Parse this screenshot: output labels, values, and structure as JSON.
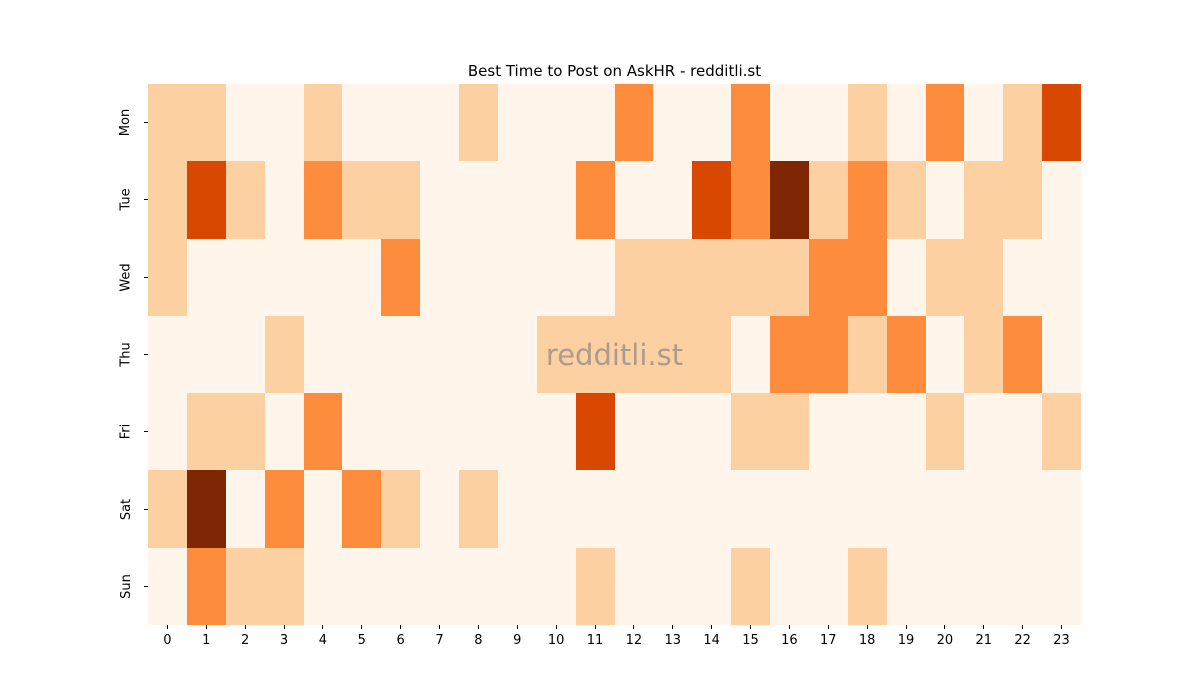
{
  "chart_data": {
    "type": "heatmap",
    "title": "Best Time to Post on AskHR - redditli.st",
    "watermark": "redditli.st",
    "xlabel": "",
    "ylabel": "",
    "x_labels": [
      "0",
      "1",
      "2",
      "3",
      "4",
      "5",
      "6",
      "7",
      "8",
      "9",
      "10",
      "11",
      "12",
      "13",
      "14",
      "15",
      "16",
      "17",
      "18",
      "19",
      "20",
      "21",
      "22",
      "23"
    ],
    "y_labels": [
      "Mon",
      "Tue",
      "Wed",
      "Thu",
      "Fri",
      "Sat",
      "Sun"
    ],
    "values": [
      [
        1,
        1,
        0,
        0,
        1,
        0,
        0,
        0,
        1,
        0,
        0,
        0,
        2,
        0,
        0,
        2,
        0,
        0,
        1,
        0,
        2,
        0,
        1,
        3
      ],
      [
        1,
        3,
        1,
        0,
        2,
        1,
        1,
        0,
        0,
        0,
        0,
        2,
        0,
        0,
        3,
        2,
        4,
        1,
        2,
        1,
        0,
        1,
        1,
        0
      ],
      [
        1,
        0,
        0,
        0,
        0,
        0,
        2,
        0,
        0,
        0,
        0,
        0,
        1,
        1,
        1,
        1,
        1,
        2,
        2,
        0,
        1,
        1,
        0,
        0
      ],
      [
        0,
        0,
        0,
        1,
        0,
        0,
        0,
        0,
        0,
        0,
        1,
        1,
        1,
        1,
        1,
        0,
        2,
        2,
        1,
        2,
        0,
        1,
        2,
        0
      ],
      [
        0,
        1,
        1,
        0,
        2,
        0,
        0,
        0,
        0,
        0,
        0,
        3,
        0,
        0,
        0,
        1,
        1,
        0,
        0,
        0,
        1,
        0,
        0,
        1
      ],
      [
        1,
        4,
        0,
        2,
        0,
        2,
        1,
        0,
        1,
        0,
        0,
        0,
        0,
        0,
        0,
        0,
        0,
        0,
        0,
        0,
        0,
        0,
        0,
        0
      ],
      [
        0,
        2,
        1,
        1,
        0,
        0,
        0,
        0,
        0,
        0,
        0,
        1,
        0,
        0,
        0,
        1,
        0,
        0,
        1,
        0,
        0,
        0,
        0,
        0
      ]
    ],
    "value_range": [
      0,
      4
    ],
    "colorscale": [
      "#FFF5EB",
      "#FDD0A2",
      "#FD8D3C",
      "#D94801",
      "#7F2704"
    ],
    "colormap_name": "Oranges",
    "legend": "none",
    "grid": false,
    "background_color": "#FFFFFF",
    "watermark_color": "#808080"
  }
}
